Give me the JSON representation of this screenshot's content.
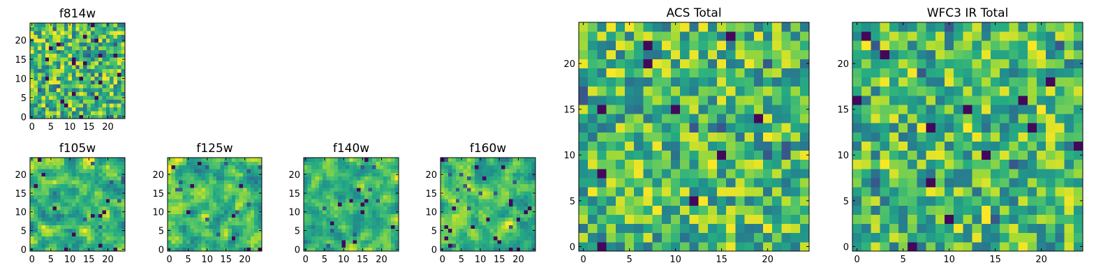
{
  "figure": {
    "description_colormap": "viridis",
    "colors": {
      "low": "#440154",
      "mid_low": "#31688e",
      "mid": "#21918c",
      "mid_high": "#5ec962",
      "high": "#fde725"
    }
  },
  "chart_data": [
    {
      "id": "f814w",
      "type": "heatmap",
      "title": "f814w",
      "nx": 25,
      "ny": 25,
      "xlim": [
        0,
        25
      ],
      "ylim": [
        0,
        25
      ],
      "xticks": [
        0,
        5,
        10,
        15,
        20
      ],
      "xtick_labels": [
        "0",
        "5",
        "10",
        "15",
        "20"
      ],
      "yticks": [
        0,
        5,
        10,
        15,
        20
      ],
      "ytick_labels": [
        "0",
        "5",
        "10",
        "15",
        "20"
      ],
      "seed": 11,
      "smooth": 0,
      "sparsity": 0.05
    },
    {
      "id": "f105w",
      "type": "heatmap",
      "title": "f105w",
      "nx": 25,
      "ny": 25,
      "xlim": [
        0,
        25
      ],
      "ylim": [
        0,
        25
      ],
      "xticks": [
        0,
        5,
        10,
        15,
        20
      ],
      "xtick_labels": [
        "0",
        "5",
        "10",
        "15",
        "20"
      ],
      "yticks": [
        0,
        5,
        10,
        15,
        20
      ],
      "ytick_labels": [
        "0",
        "5",
        "10",
        "15",
        "20"
      ],
      "seed": 23,
      "smooth": 1,
      "sparsity": 0.03
    },
    {
      "id": "f125w",
      "type": "heatmap",
      "title": "f125w",
      "nx": 25,
      "ny": 25,
      "xlim": [
        0,
        25
      ],
      "ylim": [
        0,
        25
      ],
      "xticks": [
        0,
        5,
        10,
        15,
        20
      ],
      "xtick_labels": [
        "0",
        "5",
        "10",
        "15",
        "20"
      ],
      "yticks": [
        0,
        5,
        10,
        15,
        20
      ],
      "ytick_labels": [
        "0",
        "5",
        "10",
        "15",
        "20"
      ],
      "seed": 37,
      "smooth": 1,
      "sparsity": 0.02
    },
    {
      "id": "f140w",
      "type": "heatmap",
      "title": "f140w",
      "nx": 25,
      "ny": 25,
      "xlim": [
        0,
        25
      ],
      "ylim": [
        0,
        25
      ],
      "xticks": [
        0,
        5,
        10,
        15,
        20
      ],
      "xtick_labels": [
        "0",
        "5",
        "10",
        "15",
        "20"
      ],
      "yticks": [
        0,
        5,
        10,
        15,
        20
      ],
      "ytick_labels": [
        "0",
        "5",
        "10",
        "15",
        "20"
      ],
      "seed": 41,
      "smooth": 1,
      "sparsity": 0.03
    },
    {
      "id": "f160w",
      "type": "heatmap",
      "title": "f160w",
      "nx": 25,
      "ny": 25,
      "xlim": [
        0,
        25
      ],
      "ylim": [
        0,
        25
      ],
      "xticks": [
        0,
        5,
        10,
        15,
        20
      ],
      "xtick_labels": [
        "0",
        "5",
        "10",
        "15",
        "20"
      ],
      "yticks": [
        0,
        5,
        10,
        15,
        20
      ],
      "ytick_labels": [
        "0",
        "5",
        "10",
        "15",
        "20"
      ],
      "seed": 53,
      "smooth": 1,
      "sparsity": 0.06
    },
    {
      "id": "acs_total",
      "type": "heatmap",
      "title": "ACS Total",
      "nx": 25,
      "ny": 25,
      "xlim": [
        0,
        25
      ],
      "ylim": [
        0,
        25
      ],
      "xticks": [
        0,
        5,
        10,
        15,
        20
      ],
      "xtick_labels": [
        "0",
        "5",
        "10",
        "15",
        "20"
      ],
      "yticks": [
        0,
        5,
        10,
        15,
        20
      ],
      "ytick_labels": [
        "0",
        "5",
        "10",
        "15",
        "20"
      ],
      "seed": 67,
      "smooth": 0,
      "sparsity": 0.025
    },
    {
      "id": "wfc3_ir_total",
      "type": "heatmap",
      "title": "WFC3 IR Total",
      "nx": 25,
      "ny": 25,
      "xlim": [
        0,
        25
      ],
      "ylim": [
        0,
        25
      ],
      "xticks": [
        0,
        5,
        10,
        15,
        20
      ],
      "xtick_labels": [
        "0",
        "5",
        "10",
        "15",
        "20"
      ],
      "yticks": [
        0,
        5,
        10,
        15,
        20
      ],
      "ytick_labels": [
        "0",
        "5",
        "10",
        "15",
        "20"
      ],
      "seed": 79,
      "smooth": 0,
      "sparsity": 0.025
    }
  ]
}
